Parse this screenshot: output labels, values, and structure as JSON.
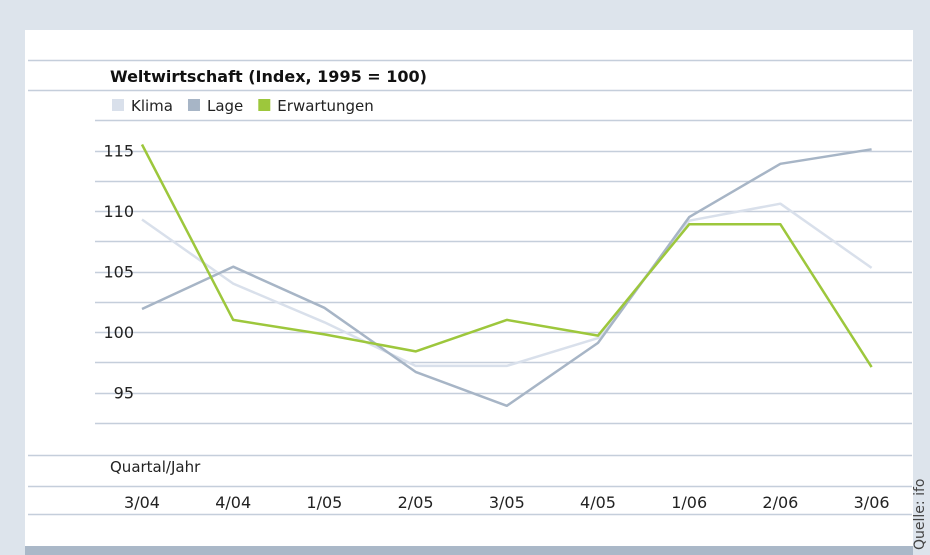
{
  "chart_data": {
    "type": "line",
    "title": "Weltwirtschaft (Index, 1995 = 100)",
    "xlabel": "Quartal/Jahr",
    "ylabel": "",
    "categories": [
      "3/04",
      "4/04",
      "1/05",
      "2/05",
      "3/05",
      "4/05",
      "1/06",
      "2/06",
      "3/06"
    ],
    "yticks": [
      95,
      100,
      105,
      110,
      115
    ],
    "ylim": [
      90,
      119
    ],
    "grid": true,
    "legend_position": "top-left",
    "series": [
      {
        "name": "Klima",
        "color": "#d9e0eb",
        "values": [
          109.3,
          104.0,
          100.8,
          97.2,
          97.2,
          99.5,
          109.2,
          110.6,
          105.3
        ]
      },
      {
        "name": "Lage",
        "color": "#a7b5c6",
        "values": [
          101.9,
          105.4,
          102.0,
          96.7,
          93.9,
          99.1,
          109.5,
          113.9,
          115.1
        ]
      },
      {
        "name": "Erwartungen",
        "color": "#9dc73c",
        "values": [
          115.5,
          101.0,
          99.8,
          98.4,
          101.0,
          99.7,
          108.9,
          108.9,
          97.1
        ]
      }
    ]
  },
  "source": "Quelle: ifo"
}
